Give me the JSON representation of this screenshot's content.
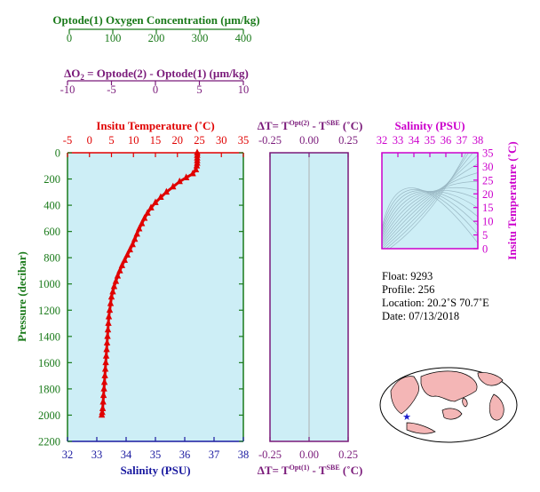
{
  "colors": {
    "oxygen": "#1a7a1a",
    "delta_o2": "#7a1a7a",
    "temperature": "#e00000",
    "salinity": "#1a1aa0",
    "pressure": "#1a7a1a",
    "magenta": "#cc00cc",
    "panel_fill": "#cdeef6",
    "grid": "#9ab8c4",
    "map_land": "#f4b6b6",
    "map_ocean": "#ffffff",
    "map_marker": "#1a1acc"
  },
  "oxygen_axis": {
    "label": "Optode(1) Oxygen Concentration (µm/kg)",
    "ticks": [
      "0",
      "100",
      "200",
      "300",
      "400"
    ]
  },
  "delta_o2_axis": {
    "label_prefix": "ΔO",
    "label_sub": "2",
    "label_suffix": " = Optode(2) - Optode(1)    (µm/kg)",
    "ticks": [
      "-10",
      "-5",
      "0",
      "5",
      "10"
    ]
  },
  "main_panel": {
    "top_label": "Insitu Temperature (˚C)",
    "top_ticks": [
      "-5",
      "0",
      "5",
      "10",
      "15",
      "20",
      "25",
      "30",
      "35"
    ],
    "bottom_label": "Salinity (PSU)",
    "bottom_ticks": [
      "32",
      "33",
      "34",
      "35",
      "36",
      "37",
      "38"
    ],
    "y_label": "Pressure (decibar)",
    "y_ticks": [
      "0",
      "200",
      "400",
      "600",
      "800",
      "1000",
      "1200",
      "1400",
      "1600",
      "1800",
      "2000",
      "2200"
    ]
  },
  "delta_t_panel": {
    "top_label_prefix": "ΔT= T",
    "top_sup1": "Opt(2)",
    "top_mid": " - T",
    "top_sup2": "SBE",
    "top_suffix": " (˚C)",
    "top_ticks": [
      "-0.25",
      "0.00",
      "0.25"
    ],
    "bottom_label_prefix": "ΔT= T",
    "bottom_sup1": "Opt(1)",
    "bottom_mid": " - T",
    "bottom_sup2": "SBE",
    "bottom_suffix": " (˚C)",
    "bottom_ticks": [
      "-0.25",
      "0.00",
      "0.25"
    ]
  },
  "ts_panel": {
    "top_label": "Salinity (PSU)",
    "top_ticks": [
      "32",
      "33",
      "34",
      "35",
      "36",
      "37",
      "38"
    ],
    "right_label": "Insitu Temperature (˚C)",
    "right_ticks": [
      "0",
      "5",
      "10",
      "15",
      "20",
      "25",
      "30",
      "35"
    ]
  },
  "info": {
    "float": "Float:  9293",
    "profile": "Profile:  256",
    "location": "Location:  20.2˚S  70.7˚E",
    "date": "Date:  07/13/2018"
  },
  "chart_data": {
    "type": "scatter",
    "title": "",
    "xlabel": "Insitu Temperature (˚C)",
    "ylabel": "Pressure (decibar)",
    "xlim": [
      -5,
      35
    ],
    "ylim": [
      2200,
      0
    ],
    "series": [
      {
        "name": "",
        "x": [
          24.5,
          24.5,
          24.5,
          24.5,
          24.5,
          24.4,
          24.2,
          23.5,
          22.0,
          20.5,
          19.0,
          17.5,
          16.2,
          15.0,
          14.0,
          13.2,
          12.5,
          11.9,
          11.3,
          10.8,
          10.3,
          9.8,
          9.2,
          8.6,
          8.0,
          7.4,
          6.9,
          6.4,
          6.0,
          5.6,
          5.3,
          5.0,
          4.8,
          4.6,
          4.4,
          4.3,
          4.2,
          4.1,
          4.0,
          3.9,
          3.8,
          3.7,
          3.6,
          3.5,
          3.4,
          3.3,
          3.2,
          3.1,
          3.0,
          2.9,
          2.8
        ],
        "y": [
          0,
          20,
          40,
          60,
          80,
          100,
          130,
          160,
          190,
          220,
          260,
          300,
          340,
          380,
          420,
          460,
          500,
          540,
          580,
          620,
          660,
          700,
          740,
          780,
          820,
          860,
          900,
          940,
          980,
          1020,
          1060,
          1100,
          1150,
          1200,
          1250,
          1300,
          1350,
          1400,
          1450,
          1500,
          1550,
          1600,
          1650,
          1700,
          1750,
          1800,
          1850,
          1900,
          1950,
          1980,
          2000
        ]
      }
    ],
    "grid": false
  }
}
